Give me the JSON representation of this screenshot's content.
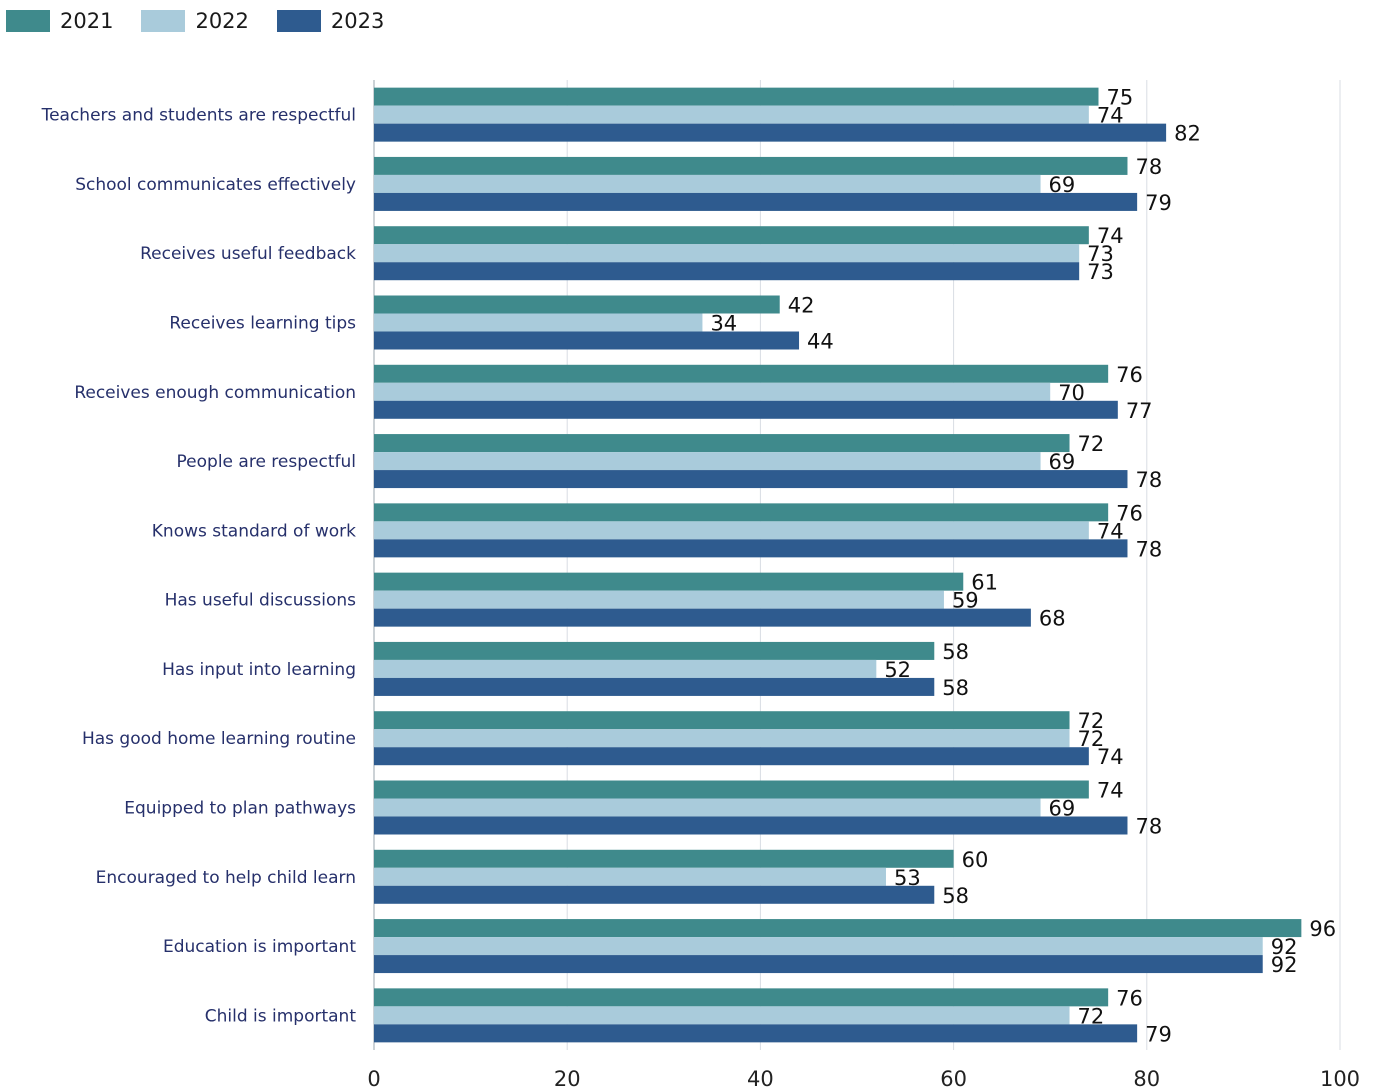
{
  "chart_data": {
    "type": "bar",
    "orientation": "horizontal",
    "categories": [
      "Teachers and students are respectful",
      "School communicates effectively",
      "Receives useful feedback",
      "Receives learning tips",
      "Receives enough communication",
      "People are respectful",
      "Knows standard of work",
      "Has useful discussions",
      "Has input into learning",
      "Has good home learning routine",
      "Equipped to plan pathways",
      "Encouraged to help child learn",
      "Education is important",
      "Child is important"
    ],
    "series": [
      {
        "name": "2021",
        "color": "#3f8a8c",
        "values": [
          75,
          78,
          74,
          42,
          76,
          72,
          76,
          61,
          58,
          72,
          74,
          60,
          96,
          76
        ]
      },
      {
        "name": "2022",
        "color": "#a9cbdb",
        "values": [
          74,
          69,
          73,
          34,
          70,
          69,
          74,
          59,
          52,
          72,
          69,
          53,
          92,
          72
        ]
      },
      {
        "name": "2023",
        "color": "#2e5b8f",
        "values": [
          82,
          79,
          73,
          44,
          77,
          78,
          78,
          68,
          58,
          74,
          78,
          58,
          92,
          79
        ]
      }
    ],
    "xlim": [
      0,
      100
    ],
    "xticks": [
      "0",
      "20",
      "40",
      "60",
      "80",
      "100"
    ],
    "grid": "vertical",
    "legend_position": "top-left",
    "data_labels": true
  }
}
